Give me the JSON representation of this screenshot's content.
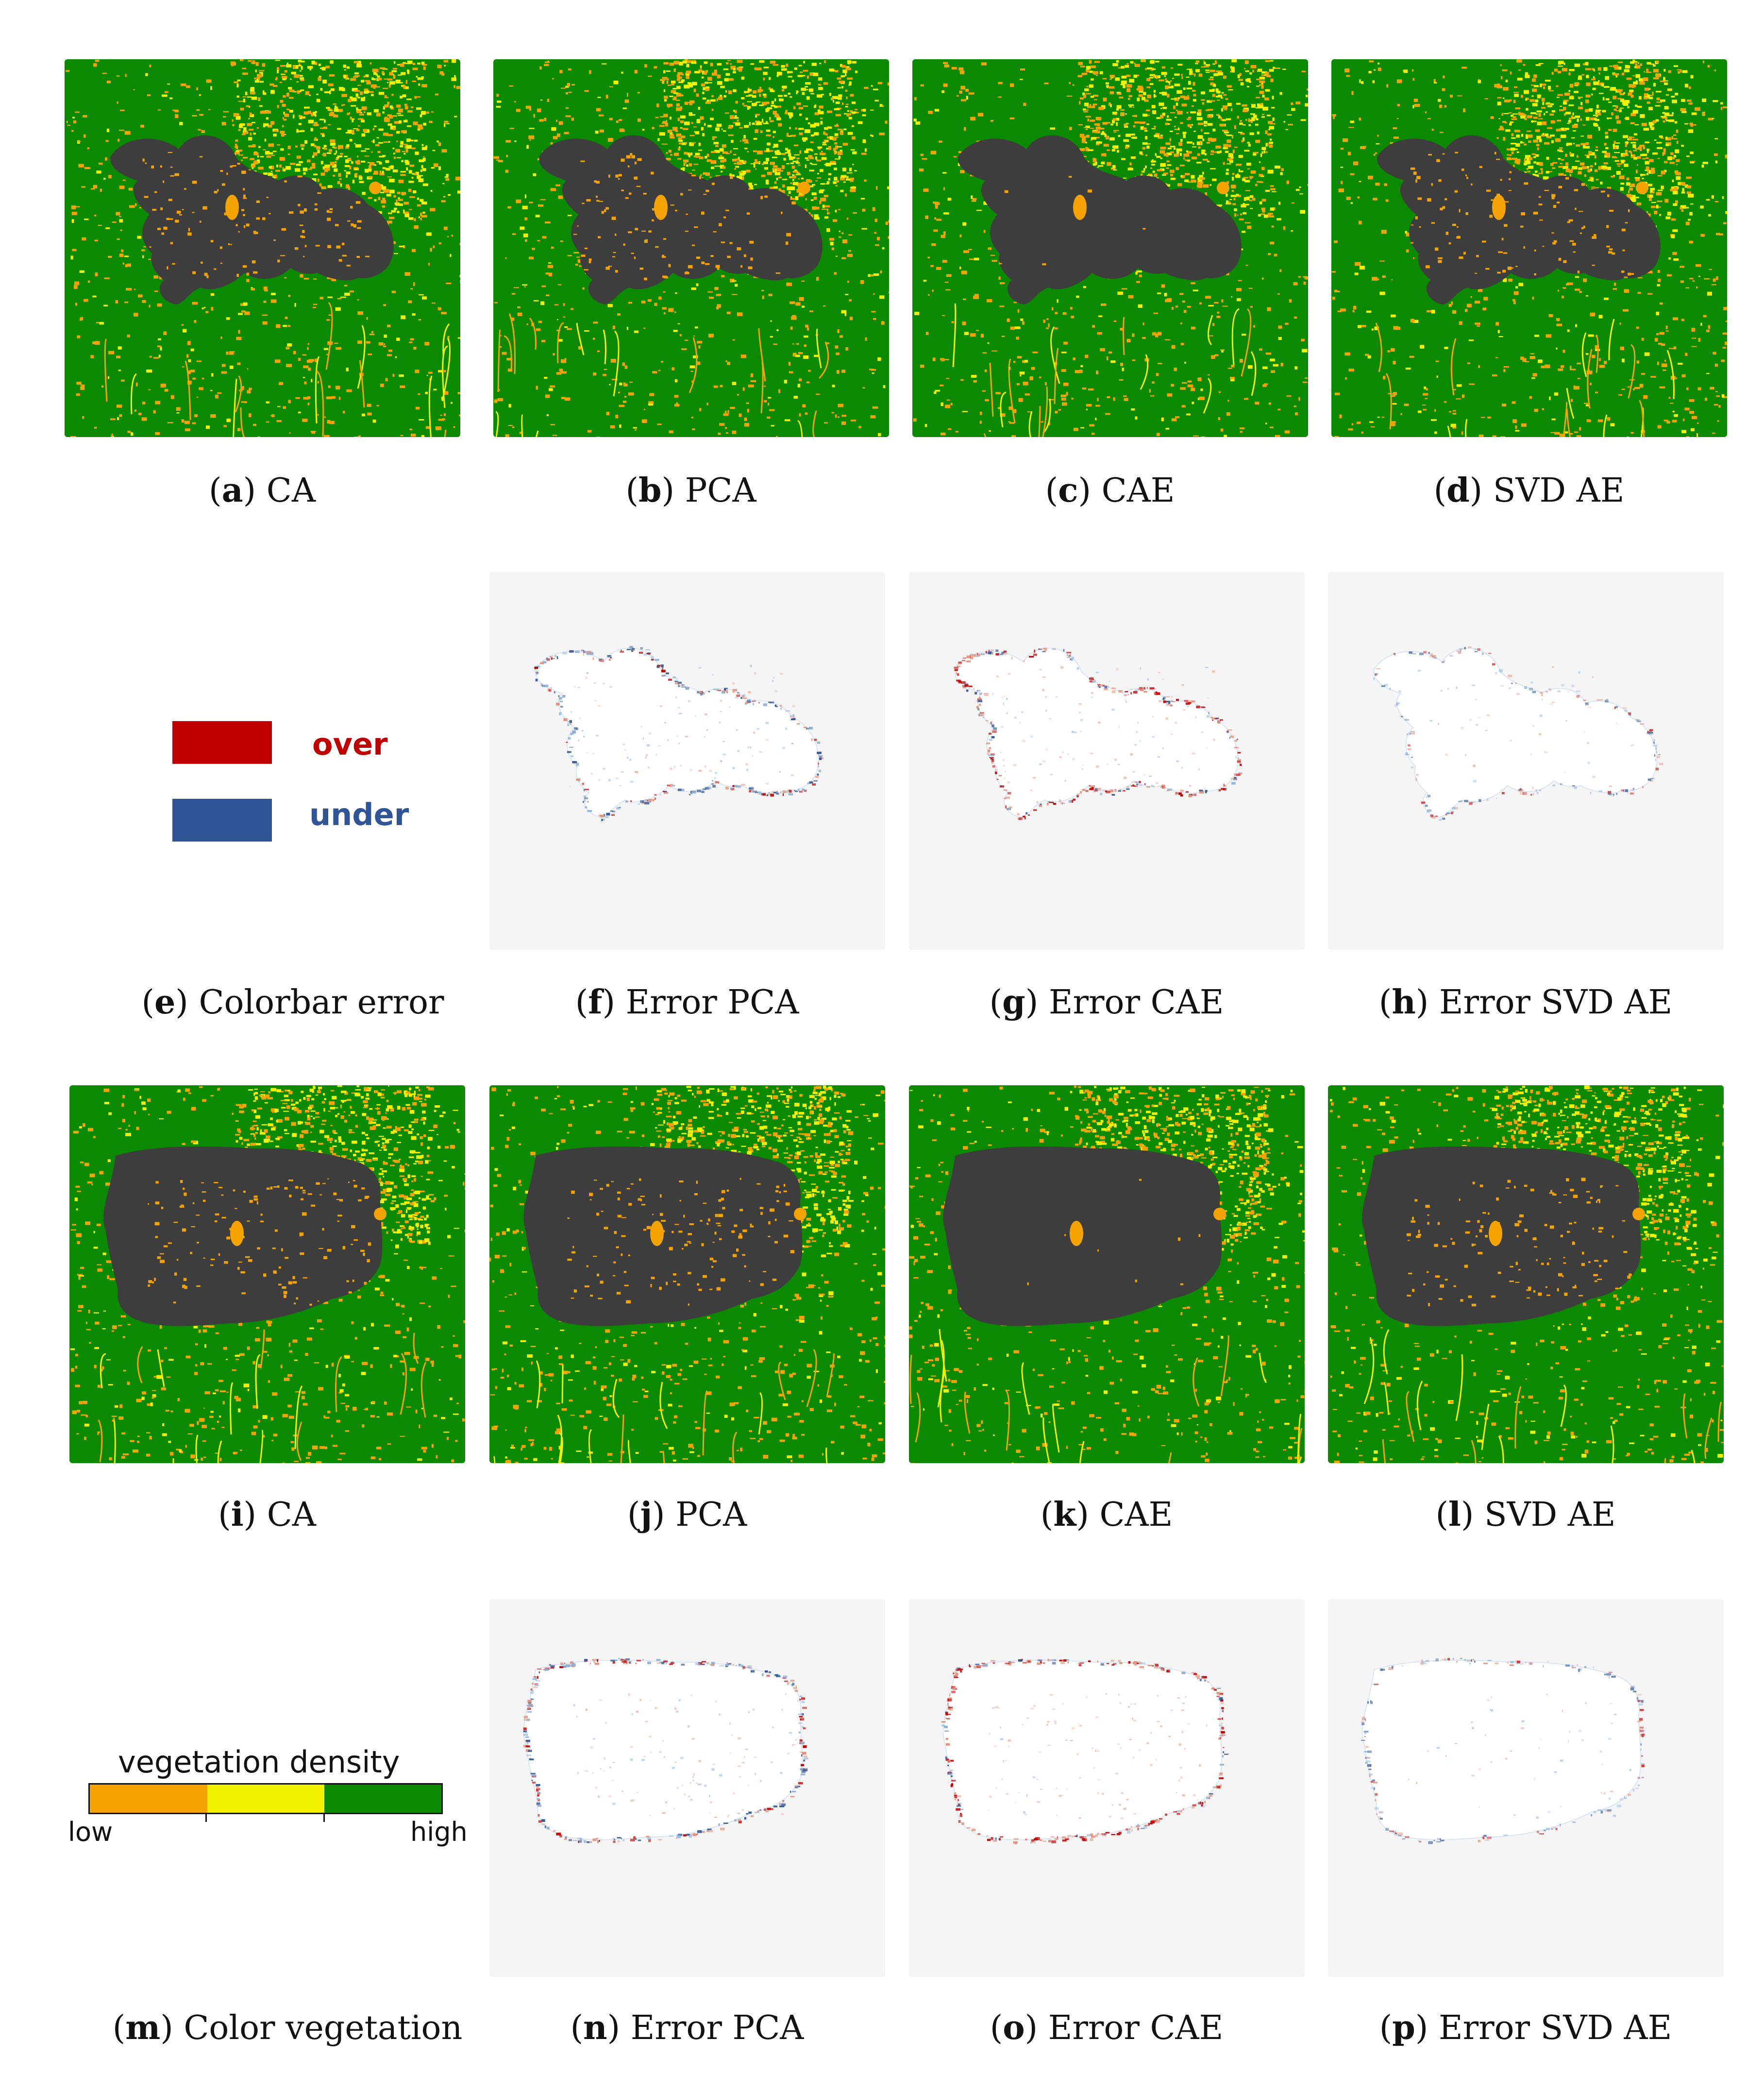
{
  "colors": {
    "veg_low": "#f5a300",
    "veg_mid": "#f2f200",
    "veg_high": "#0b8a00",
    "burned": "#3d3d3d",
    "error_bg": "#f5f5f5",
    "over": "#c00000",
    "under": "#2f5597"
  },
  "captions": [
    {
      "letter": "a",
      "text": "CA"
    },
    {
      "letter": "b",
      "text": "PCA"
    },
    {
      "letter": "c",
      "text": "CAE"
    },
    {
      "letter": "d",
      "text": "SVD AE"
    },
    {
      "letter": "e",
      "text": "Colorbar error"
    },
    {
      "letter": "f",
      "text": "Error PCA"
    },
    {
      "letter": "g",
      "text": "Error CAE"
    },
    {
      "letter": "h",
      "text": "Error SVD AE"
    },
    {
      "letter": "i",
      "text": "CA"
    },
    {
      "letter": "j",
      "text": "PCA"
    },
    {
      "letter": "k",
      "text": "CAE"
    },
    {
      "letter": "l",
      "text": "SVD AE"
    },
    {
      "letter": "m",
      "text": "Color vegetation"
    },
    {
      "letter": "n",
      "text": "Error PCA"
    },
    {
      "letter": "o",
      "text": "Error CAE"
    },
    {
      "letter": "p",
      "text": "Error SVD AE"
    }
  ],
  "error_legend": {
    "over_label": "over",
    "under_label": "under"
  },
  "vegetation_legend": {
    "title": "vegetation density",
    "low_label": "low",
    "high_label": "high"
  }
}
